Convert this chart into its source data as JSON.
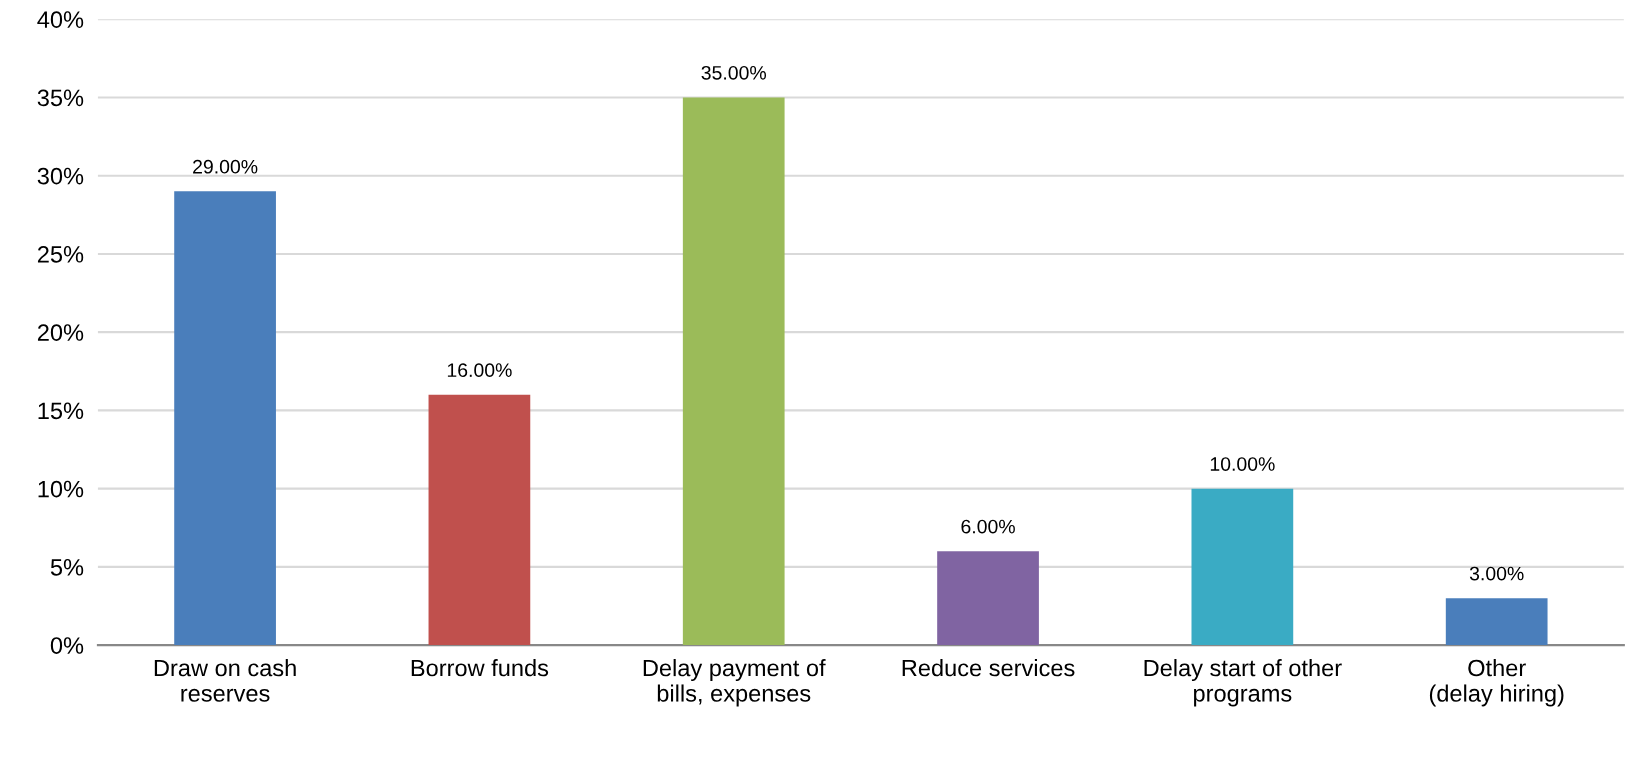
{
  "chart_data": {
    "type": "bar",
    "categories": [
      "Draw on cash\nreserves",
      "Borrow funds",
      "Delay payment of\nbills, expenses",
      "Reduce services",
      "Delay start of other\nprograms",
      "Other\n(delay hiring)"
    ],
    "values": [
      29,
      16,
      35,
      6,
      10,
      3
    ],
    "colors": [
      "#4a7ebb",
      "#c0504d",
      "#9bbb59",
      "#8064a2",
      "#3aabc4",
      "#4a7ebb"
    ],
    "value_labels": [
      "29.00%",
      "16.00%",
      "35.00%",
      "6.00%",
      "10.00%",
      "3.00%"
    ],
    "ylim": [
      0,
      40
    ],
    "yticks": [
      {
        "value": 0,
        "label": "0%"
      },
      {
        "value": 5,
        "label": "5%"
      },
      {
        "value": 10,
        "label": "10%"
      },
      {
        "value": 15,
        "label": "15%"
      },
      {
        "value": 20,
        "label": "20%"
      },
      {
        "value": 25,
        "label": "25%"
      },
      {
        "value": 30,
        "label": "30%"
      },
      {
        "value": 35,
        "label": "35%"
      },
      {
        "value": 40,
        "label": "40%"
      }
    ],
    "grid": "y",
    "legend": false
  }
}
